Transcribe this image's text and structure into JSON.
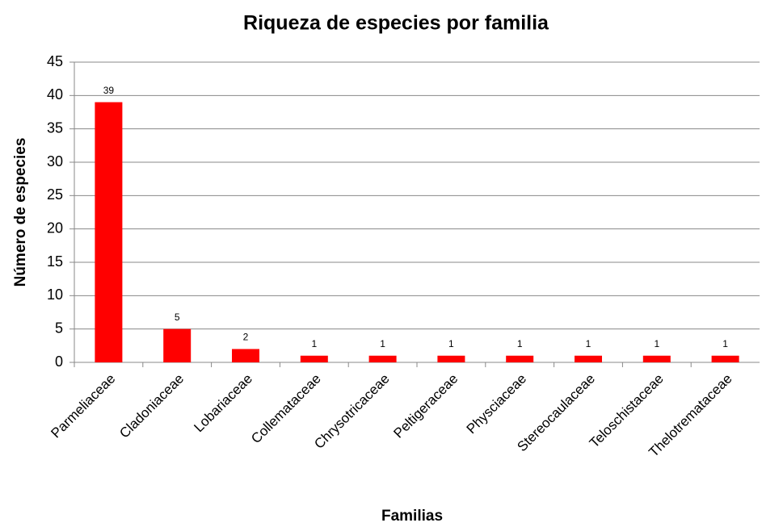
{
  "chart_data": {
    "type": "bar",
    "title": "Riqueza de especies por familia",
    "x_label": "Familias",
    "y_label": "Número de especies",
    "categories": [
      "Parmeliaceae",
      "Cladoniaceae",
      "Lobariaceae",
      "Collemataceae",
      "Chrysotricaceae",
      "Peltigeraceae",
      "Physciaceae",
      "Stereocaulaceae",
      "Teloschistaceae",
      "Thelotremataceae"
    ],
    "values": [
      39,
      5,
      2,
      1,
      1,
      1,
      1,
      1,
      1,
      1
    ],
    "color": "#ff0000",
    "ylim": [
      0,
      45
    ],
    "yticks": [
      0,
      5,
      10,
      15,
      20,
      25,
      30,
      35,
      40,
      45
    ],
    "grid": true
  }
}
